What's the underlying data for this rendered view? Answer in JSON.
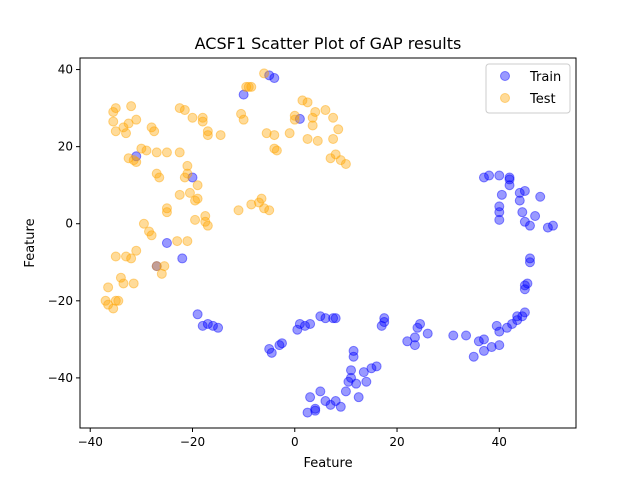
{
  "chart_data": {
    "type": "scatter",
    "title": "ACSF1 Scatter Plot of GAP results",
    "xlabel": "Feature",
    "ylabel": "Feature",
    "xlim": [
      -42,
      55
    ],
    "ylim": [
      -53,
      43
    ],
    "xticks": [
      -40,
      -20,
      0,
      20,
      40
    ],
    "yticks": [
      -40,
      -20,
      0,
      20,
      40
    ],
    "legend_position": "top-right",
    "series": [
      {
        "name": "Train",
        "color": "#0000ff",
        "points": [
          [
            -10,
            33.5
          ],
          [
            -5,
            38.5
          ],
          [
            -4,
            37.8
          ],
          [
            1,
            27.2
          ],
          [
            -31,
            17.5
          ],
          [
            -20,
            12
          ],
          [
            -25,
            -5
          ],
          [
            -27,
            -11
          ],
          [
            -22,
            -9
          ],
          [
            -19,
            -23.5
          ],
          [
            -18,
            -26.5
          ],
          [
            -17,
            -26
          ],
          [
            -16,
            -26.5
          ],
          [
            -15,
            -27
          ],
          [
            -5,
            -32.5
          ],
          [
            -4.5,
            -33.5
          ],
          [
            -3,
            -31.5
          ],
          [
            -2.5,
            -31
          ],
          [
            0.5,
            -27.5
          ],
          [
            1,
            -26
          ],
          [
            2,
            -26.5
          ],
          [
            3,
            -26
          ],
          [
            5,
            -24
          ],
          [
            6,
            -24.5
          ],
          [
            7.5,
            -24.5
          ],
          [
            8,
            -24.5
          ],
          [
            17,
            -26.5
          ],
          [
            17.5,
            -25.5
          ],
          [
            17.5,
            -24.5
          ],
          [
            3,
            -45
          ],
          [
            4,
            -48
          ],
          [
            5,
            -43.5
          ],
          [
            6,
            -46
          ],
          [
            7,
            -47
          ],
          [
            8,
            -46
          ],
          [
            9,
            -47.5
          ],
          [
            10,
            -43.5
          ],
          [
            10.5,
            -41
          ],
          [
            11,
            -40
          ],
          [
            11,
            -38
          ],
          [
            11.5,
            -34.5
          ],
          [
            11.5,
            -33
          ],
          [
            12,
            -41.5
          ],
          [
            12.5,
            -45
          ],
          [
            13.5,
            -38.5
          ],
          [
            14,
            -41
          ],
          [
            15,
            -37.5
          ],
          [
            16,
            -37
          ],
          [
            2.5,
            -49
          ],
          [
            4,
            -48.5
          ],
          [
            22,
            -30.5
          ],
          [
            23.5,
            -31.5
          ],
          [
            23.5,
            -29.5
          ],
          [
            24,
            -27
          ],
          [
            24.5,
            -26
          ],
          [
            26,
            -28.5
          ],
          [
            31,
            -29
          ],
          [
            33.5,
            -29
          ],
          [
            35,
            -34.5
          ],
          [
            36,
            -30.5
          ],
          [
            37,
            -30
          ],
          [
            37,
            -33
          ],
          [
            38.5,
            -32
          ],
          [
            39.5,
            -26.5
          ],
          [
            40,
            -28
          ],
          [
            40,
            -31.5
          ],
          [
            41.5,
            -27
          ],
          [
            42.5,
            -26
          ],
          [
            43.5,
            -24
          ],
          [
            44.5,
            -24
          ],
          [
            45,
            -23
          ],
          [
            43.5,
            -25
          ],
          [
            45,
            -17
          ],
          [
            45,
            -16
          ],
          [
            45.5,
            -15.5
          ],
          [
            46,
            -10
          ],
          [
            46,
            -9
          ],
          [
            45,
            0.5
          ],
          [
            46,
            -0.5
          ],
          [
            47,
            2
          ],
          [
            49.5,
            -1
          ],
          [
            50.5,
            -0.5
          ],
          [
            48,
            7
          ],
          [
            44,
            6
          ],
          [
            45,
            8.5
          ],
          [
            44,
            8
          ],
          [
            44.5,
            3
          ],
          [
            42,
            10
          ],
          [
            42,
            12
          ],
          [
            40.5,
            7.5
          ],
          [
            40,
            4.5
          ],
          [
            40,
            3
          ],
          [
            40,
            1
          ],
          [
            37,
            12
          ],
          [
            38,
            12.5
          ],
          [
            40,
            12.5
          ],
          [
            42,
            11.5
          ]
        ]
      },
      {
        "name": "Test",
        "color": "#ffa500",
        "points": [
          [
            -10.5,
            28.5
          ],
          [
            -10,
            27
          ],
          [
            -9.5,
            35.5
          ],
          [
            -9,
            35.5
          ],
          [
            -8.5,
            35.5
          ],
          [
            -6,
            39
          ],
          [
            -5.5,
            23.5
          ],
          [
            -4,
            23
          ],
          [
            -4,
            19.5
          ],
          [
            -3.5,
            19
          ],
          [
            -1,
            23.5
          ],
          [
            0,
            27
          ],
          [
            0,
            28
          ],
          [
            1.5,
            32
          ],
          [
            2.5,
            31.5
          ],
          [
            2.5,
            22
          ],
          [
            3.5,
            27.5
          ],
          [
            3.5,
            25.5
          ],
          [
            4,
            29
          ],
          [
            4.5,
            21.5
          ],
          [
            6,
            29.5
          ],
          [
            7,
            17
          ],
          [
            7.5,
            22
          ],
          [
            7.5,
            27.5
          ],
          [
            8,
            18
          ],
          [
            8.5,
            24.5
          ],
          [
            9,
            16.5
          ],
          [
            10,
            15.5
          ],
          [
            -22.5,
            30
          ],
          [
            -21.5,
            29.5
          ],
          [
            -20,
            27.5
          ],
          [
            -18,
            26.5
          ],
          [
            -18,
            27.5
          ],
          [
            -17,
            24
          ],
          [
            -17,
            23
          ],
          [
            -14.5,
            23
          ],
          [
            -29,
            19
          ],
          [
            -30,
            19.5
          ],
          [
            -32.5,
            17
          ],
          [
            -31.5,
            16.5
          ],
          [
            -31,
            16
          ],
          [
            -28,
            25
          ],
          [
            -27.5,
            24
          ],
          [
            -27,
            18.5
          ],
          [
            -25,
            18.5
          ],
          [
            -22.5,
            18.5
          ],
          [
            -21,
            15
          ],
          [
            -21,
            13
          ],
          [
            -21.5,
            12
          ],
          [
            -19,
            10
          ],
          [
            -19.5,
            6
          ],
          [
            -19,
            6.5
          ],
          [
            -20.5,
            8
          ],
          [
            -22.5,
            7.5
          ],
          [
            -17.5,
            2
          ],
          [
            -17.5,
            0.5
          ],
          [
            -17,
            -0.5
          ],
          [
            -19.5,
            1
          ],
          [
            -11,
            3.5
          ],
          [
            -8.5,
            5
          ],
          [
            -7,
            5.5
          ],
          [
            -6.5,
            6.5
          ],
          [
            -6,
            4
          ],
          [
            -5,
            3.5
          ],
          [
            -27,
            13
          ],
          [
            -26.5,
            12
          ],
          [
            -25,
            4
          ],
          [
            -25,
            3
          ],
          [
            -29.5,
            0
          ],
          [
            -28.5,
            -2
          ],
          [
            -28,
            -3
          ],
          [
            -31,
            -7
          ],
          [
            -33,
            -8.5
          ],
          [
            -35,
            -8.5
          ],
          [
            -32,
            -9
          ],
          [
            -27,
            -11
          ],
          [
            -25.5,
            -11
          ],
          [
            -26,
            -13
          ],
          [
            -23,
            -4.5
          ],
          [
            -21,
            -4.5
          ],
          [
            -34,
            -14
          ],
          [
            -33.5,
            -15.5
          ],
          [
            -31.5,
            -15.5
          ],
          [
            -36.5,
            -16.5
          ],
          [
            -37,
            -20
          ],
          [
            -36.5,
            -21
          ],
          [
            -35.5,
            -22
          ],
          [
            -35,
            -20
          ],
          [
            -34.5,
            -20
          ],
          [
            -35.5,
            29
          ],
          [
            -35,
            30
          ],
          [
            -35.5,
            26.5
          ],
          [
            -33.5,
            25
          ],
          [
            -35,
            24
          ],
          [
            -32.5,
            26
          ],
          [
            -32,
            30.5
          ],
          [
            -31,
            27
          ],
          [
            -33,
            23.5
          ]
        ]
      }
    ]
  }
}
